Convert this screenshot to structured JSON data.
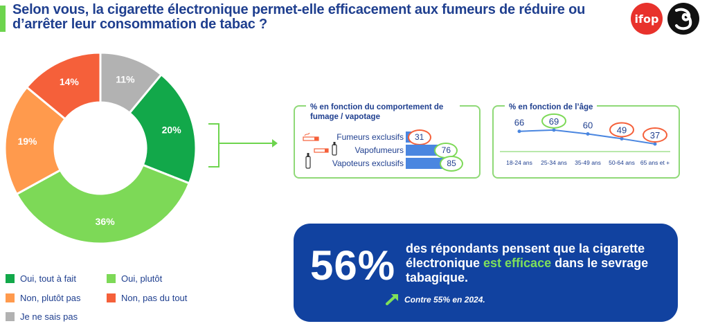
{
  "title": "Selon vous, la cigarette électronique permet-elle efficacement aux fumeurs de réduire ou d’arrêter leur consommation de tabac ?",
  "logos": {
    "ifop": "ifop"
  },
  "colors": {
    "oui_tout_a_fait": "#12a84a",
    "oui_plutot": "#7dd957",
    "non_plutot_pas": "#ff9a4d",
    "non_pas_du_tout": "#f5603a",
    "ne_sais_pas": "#b2b2b2",
    "bar_blue": "#4a86e0",
    "callout_bg": "#1142a0"
  },
  "chart_data": [
    {
      "type": "pie",
      "categories": [
        "Oui, tout à fait",
        "Oui, plutôt",
        "Non, plutôt pas",
        "Non, pas du tout",
        "Je ne sais pas"
      ],
      "values": [
        20,
        36,
        19,
        14,
        11
      ],
      "labels": [
        "20%",
        "36%",
        "19%",
        "14%",
        "11%"
      ],
      "legend_placement": "bottom-left"
    },
    {
      "type": "bar",
      "title": "% en fonction du comportement de fumage / vapotage",
      "categories": [
        "Fumeurs exclusifs",
        "Vapofumeurs",
        "Vapoteurs exclusifs"
      ],
      "values": [
        31,
        76,
        85
      ],
      "labels": [
        "31",
        "76",
        "85"
      ],
      "highlight": [
        "low",
        "high",
        "high"
      ]
    },
    {
      "type": "line",
      "title": "% en fonction de l’âge",
      "categories": [
        "18-24 ans",
        "25-34 ans",
        "35-49 ans",
        "50-64 ans",
        "65 ans et +"
      ],
      "values": [
        66,
        69,
        60,
        49,
        37
      ],
      "labels": [
        "66",
        "69",
        "60",
        "49",
        "37"
      ],
      "highlight": [
        "none",
        "high",
        "none",
        "low",
        "low"
      ]
    }
  ],
  "callout": {
    "big_number": "56%",
    "text_before": "des répondants pensent que la cigarette électronique ",
    "text_highlight": "est efficace",
    "text_after": " dans le sevrage tabagique.",
    "note": "Contre 55% en 2024."
  }
}
